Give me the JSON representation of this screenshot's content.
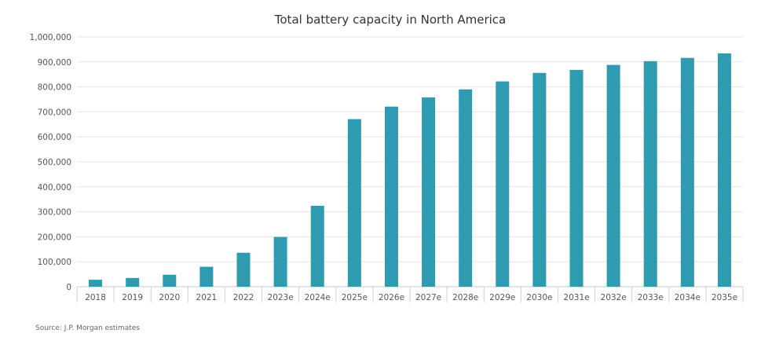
{
  "chart_data": {
    "type": "bar",
    "title": "Total battery capacity in North America",
    "xlabel": "",
    "ylabel": "",
    "categories": [
      "2018",
      "2019",
      "2020",
      "2021",
      "2022",
      "2023e",
      "2024e",
      "2025e",
      "2026e",
      "2027e",
      "2028e",
      "2029e",
      "2030e",
      "2031e",
      "2032e",
      "2033e",
      "2034e",
      "2035e"
    ],
    "values": [
      28000,
      35000,
      48000,
      80000,
      136000,
      199000,
      324000,
      671000,
      721000,
      758000,
      790000,
      822000,
      856000,
      868000,
      888000,
      903000,
      916000,
      934000
    ],
    "ylim": [
      0,
      1000000
    ],
    "yticks": [
      "0",
      "100,000",
      "200,000",
      "300,000",
      "400,000",
      "500,000",
      "600,000",
      "700,000",
      "800,000",
      "900,000",
      "1,000,000"
    ],
    "ytick_values": [
      0,
      100000,
      200000,
      300000,
      400000,
      500000,
      600000,
      700000,
      800000,
      900000,
      1000000
    ],
    "grid": true,
    "bar_color": "#2e9bb0",
    "source": "Source: J.P. Morgan estimates"
  }
}
